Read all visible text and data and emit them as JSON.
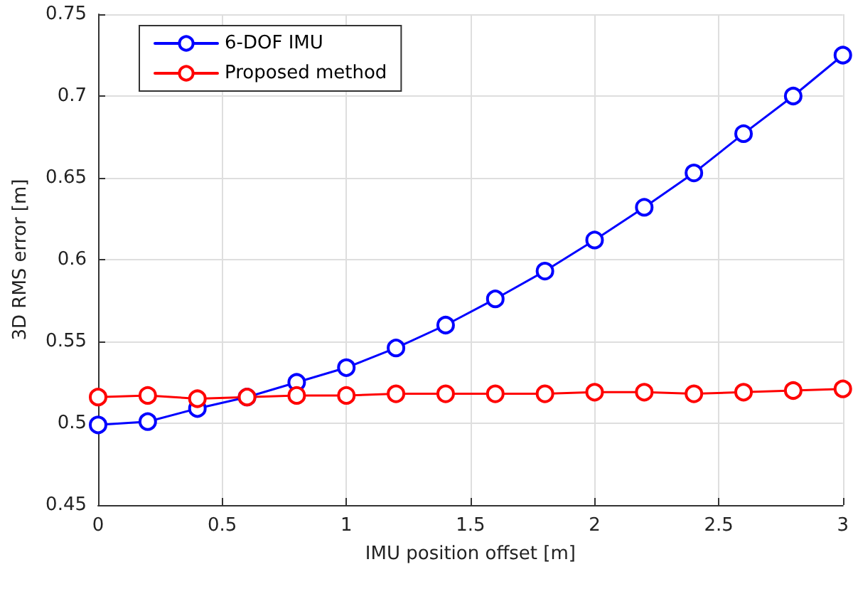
{
  "chart_data": {
    "type": "line",
    "xlabel": "IMU position offset [m]",
    "ylabel": "3D RMS error [m]",
    "x": [
      0,
      0.2,
      0.4,
      0.6,
      0.8,
      1,
      1.2,
      1.4,
      1.6,
      1.8,
      2,
      2.2,
      2.4,
      2.6,
      2.8,
      3
    ],
    "series": [
      {
        "name": "6-DOF IMU",
        "color": "#0000ff",
        "values": [
          0.499,
          0.501,
          0.509,
          0.516,
          0.525,
          0.534,
          0.546,
          0.56,
          0.576,
          0.593,
          0.612,
          0.632,
          0.653,
          0.677,
          0.7,
          0.725
        ]
      },
      {
        "name": "Proposed method",
        "color": "#ff0000",
        "values": [
          0.516,
          0.517,
          0.515,
          0.516,
          0.517,
          0.517,
          0.518,
          0.518,
          0.518,
          0.518,
          0.519,
          0.519,
          0.518,
          0.519,
          0.52,
          0.521
        ]
      }
    ],
    "xlim": [
      0,
      3
    ],
    "xticks": [
      0,
      0.5,
      1,
      1.5,
      2,
      2.5,
      3
    ],
    "ylim": [
      0.45,
      0.75
    ],
    "yticks": [
      0.45,
      0.5,
      0.55,
      0.6,
      0.65,
      0.7,
      0.75
    ],
    "grid": true,
    "legend": "top left",
    "marker": "circle",
    "line_style": "solid"
  }
}
